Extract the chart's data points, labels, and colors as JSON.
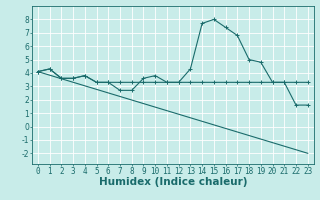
{
  "bg_color": "#c8ece9",
  "grid_color": "#ffffff",
  "line_color": "#1a6b6b",
  "xlabel": "Humidex (Indice chaleur)",
  "xlim": [
    -0.5,
    23.5
  ],
  "ylim": [
    -2.8,
    9.0
  ],
  "xticks": [
    0,
    1,
    2,
    3,
    4,
    5,
    6,
    7,
    8,
    9,
    10,
    11,
    12,
    13,
    14,
    15,
    16,
    17,
    18,
    19,
    20,
    21,
    22,
    23
  ],
  "yticks": [
    -2,
    -1,
    0,
    1,
    2,
    3,
    4,
    5,
    6,
    7,
    8
  ],
  "curve1_x": [
    0,
    1,
    2,
    3,
    4,
    5,
    6,
    7,
    8,
    9,
    10,
    11,
    12,
    13,
    14,
    15,
    16,
    17,
    18,
    19,
    20,
    21,
    22,
    23
  ],
  "curve1_y": [
    4.1,
    4.3,
    3.6,
    3.6,
    3.8,
    3.3,
    3.3,
    2.7,
    2.7,
    3.6,
    3.8,
    3.3,
    3.3,
    4.3,
    7.7,
    8.0,
    7.4,
    6.8,
    5.0,
    4.8,
    3.3,
    3.3,
    1.6,
    1.6
  ],
  "curve2_x": [
    0,
    1,
    2,
    3,
    4,
    5,
    6,
    7,
    8,
    9,
    10,
    11,
    12,
    13,
    14,
    15,
    16,
    17,
    18,
    19,
    20,
    21,
    22,
    23
  ],
  "curve2_y": [
    4.1,
    4.3,
    3.6,
    3.6,
    3.8,
    3.3,
    3.3,
    3.3,
    3.3,
    3.3,
    3.3,
    3.3,
    3.3,
    3.3,
    3.3,
    3.3,
    3.3,
    3.3,
    3.3,
    3.3,
    3.3,
    3.3,
    3.3,
    3.3
  ],
  "curve3_x": [
    0,
    23
  ],
  "curve3_y": [
    4.1,
    -2.0
  ],
  "tick_fontsize": 5.5,
  "xlabel_fontsize": 7.5,
  "lw": 0.8,
  "ms": 2.5
}
